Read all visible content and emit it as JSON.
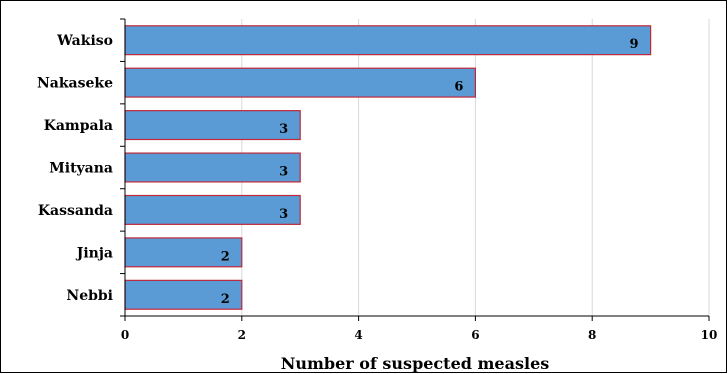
{
  "chart_data": {
    "type": "bar",
    "orientation": "horizontal",
    "categories": [
      "Wakiso",
      "Nakaseke",
      "Kampala",
      "Mityana",
      "Kassanda",
      "Jinja",
      "Nebbi"
    ],
    "values": [
      9,
      6,
      3,
      3,
      3,
      2,
      2
    ],
    "data_labels": [
      "9",
      "6",
      "3",
      "3",
      "3",
      "2",
      "2"
    ],
    "xlabel": "Number of suspected measles",
    "ylabel": "",
    "title": "",
    "xlim": [
      0,
      10
    ],
    "xticks": [
      0,
      2,
      4,
      6,
      8,
      10
    ],
    "xtick_labels": [
      "0",
      "2",
      "4",
      "6",
      "8",
      "10"
    ],
    "grid": "vertical",
    "legend": "none",
    "colors": {
      "bar_fill": "#5b9bd5",
      "bar_border": "#c0283a",
      "gridline": "#d9d9d9",
      "axis": "#000000"
    }
  }
}
